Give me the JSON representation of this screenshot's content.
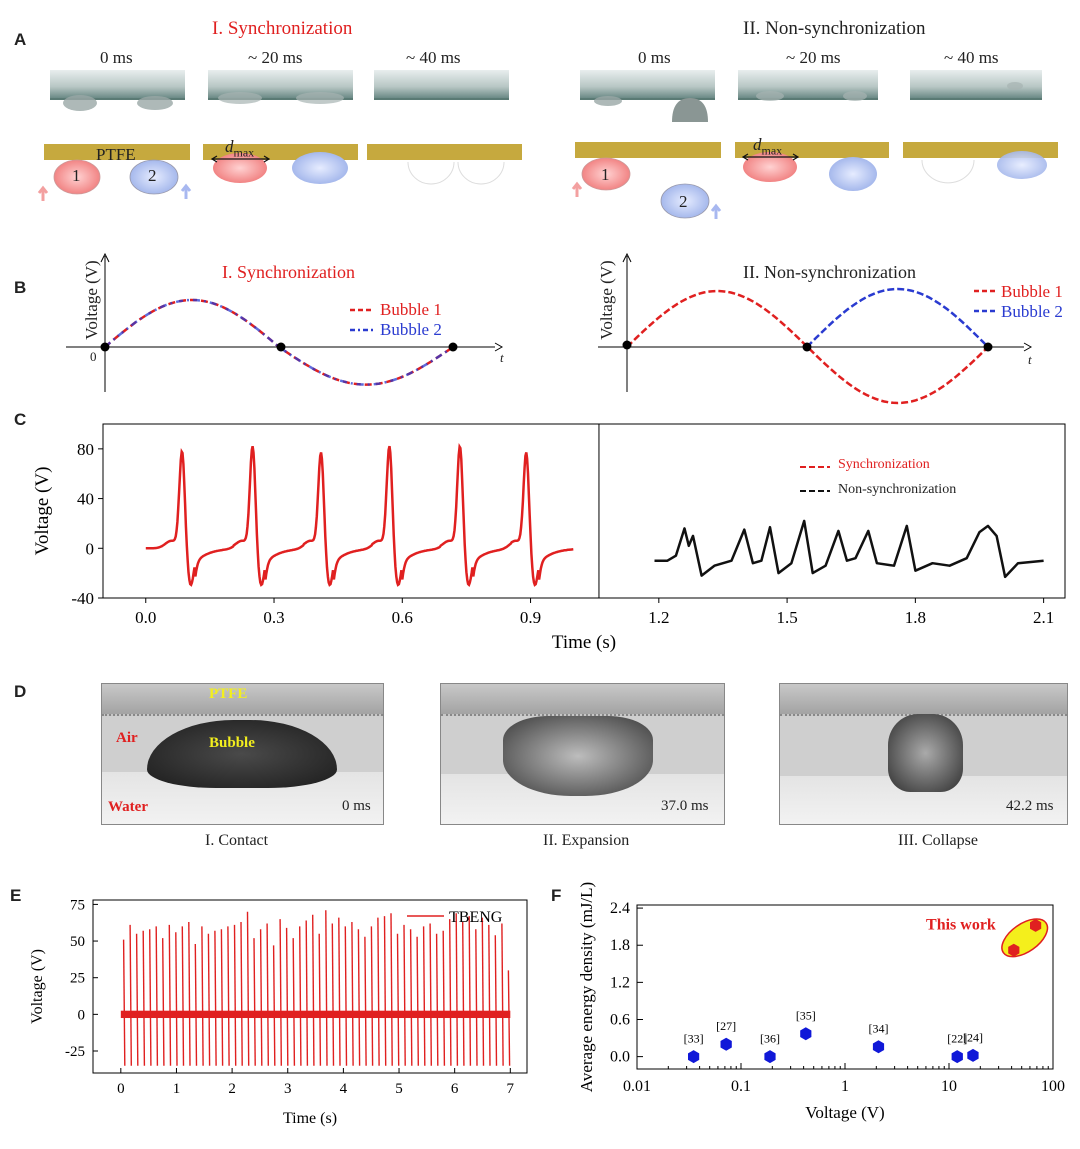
{
  "panelA": {
    "label": "A",
    "sync_title": "I. Synchronization",
    "nonsync_title": "II. Non-synchronization",
    "times": [
      "0 ms",
      "~ 20 ms",
      "~ 40 ms"
    ],
    "ptfe": "PTFE",
    "d_max_main": "d",
    "d_max_sub": "max",
    "bubble1": "1",
    "bubble2": "2"
  },
  "panelB": {
    "label": "B",
    "sync_title": "I. Synchronization",
    "nonsync_title": "II. Non-synchronization",
    "ylabel": "Voltage (V)",
    "xlabel": "t",
    "origin": "0",
    "legend1": "Bubble 1",
    "legend2": "Bubble 2",
    "colors": {
      "bubble1": "#e02020",
      "bubble2": "#2a3bd0"
    }
  },
  "panelD": {
    "label": "D",
    "ptfe": "PTFE",
    "air": "Air",
    "bubble": "Bubble",
    "water": "Water",
    "frames": [
      {
        "time": "0 ms",
        "caption": "I. Contact"
      },
      {
        "time": "37.0 ms",
        "caption": "II. Expansion"
      },
      {
        "time": "42.2 ms",
        "caption": "III. Collapse"
      }
    ]
  },
  "chart_data": [
    {
      "panel": "C",
      "type": "line",
      "xlabel": "Time (s)",
      "ylabel": "Voltage (V)",
      "xlim": [
        -0.1,
        2.15
      ],
      "ylim": [
        -40,
        100
      ],
      "xticks": [
        "0.0",
        "0.3",
        "0.6",
        "0.9",
        "1.2",
        "1.5",
        "1.8",
        "2.1"
      ],
      "yticks": [
        "-40",
        "0",
        "40",
        "80"
      ],
      "divider_x": 1.06,
      "series": [
        {
          "name": "Synchronization",
          "color": "#e02020",
          "peaks": [
            {
              "t": 0.085,
              "v": 78
            },
            {
              "t": 0.25,
              "v": 82
            },
            {
              "t": 0.41,
              "v": 77
            },
            {
              "t": 0.57,
              "v": 82
            },
            {
              "t": 0.735,
              "v": 82
            },
            {
              "t": 0.89,
              "v": 77
            }
          ],
          "troughs": -30,
          "t_start": 0.0,
          "t_end": 1.0
        },
        {
          "name": "Non-synchronization",
          "color": "#111111",
          "points": [
            [
              1.19,
              -10
            ],
            [
              1.22,
              -10
            ],
            [
              1.24,
              -6
            ],
            [
              1.26,
              16
            ],
            [
              1.27,
              2
            ],
            [
              1.28,
              10
            ],
            [
              1.3,
              -22
            ],
            [
              1.33,
              -14
            ],
            [
              1.37,
              -10
            ],
            [
              1.4,
              15
            ],
            [
              1.42,
              -12
            ],
            [
              1.44,
              -10
            ],
            [
              1.46,
              17
            ],
            [
              1.48,
              -20
            ],
            [
              1.51,
              -12
            ],
            [
              1.54,
              22
            ],
            [
              1.56,
              -20
            ],
            [
              1.59,
              -14
            ],
            [
              1.62,
              14
            ],
            [
              1.64,
              -10
            ],
            [
              1.66,
              -8
            ],
            [
              1.69,
              14
            ],
            [
              1.71,
              -12
            ],
            [
              1.75,
              -14
            ],
            [
              1.78,
              18
            ],
            [
              1.8,
              -18
            ],
            [
              1.84,
              -12
            ],
            [
              1.88,
              -14
            ],
            [
              1.92,
              -8
            ],
            [
              1.95,
              13
            ],
            [
              1.97,
              18
            ],
            [
              1.99,
              10
            ],
            [
              2.01,
              -23
            ],
            [
              2.04,
              -12
            ],
            [
              2.1,
              -10
            ]
          ]
        }
      ]
    },
    {
      "panel": "E",
      "type": "line",
      "xlabel": "Time (s)",
      "ylabel": "Voltage (V)",
      "xlim": [
        -0.5,
        7.3
      ],
      "ylim": [
        -40,
        78
      ],
      "xticks": [
        "0",
        "1",
        "2",
        "3",
        "4",
        "5",
        "6",
        "7"
      ],
      "yticks": [
        "-25",
        "0",
        "25",
        "50",
        "75"
      ],
      "legend": "TBENG",
      "color": "#e02020",
      "spike_count": 60,
      "spike_peaks": [
        51,
        61,
        55,
        57,
        58,
        60,
        52,
        61,
        56,
        60,
        63,
        48,
        60,
        55,
        57,
        58,
        60,
        61,
        63,
        70,
        52,
        58,
        62,
        47,
        65,
        59,
        52,
        60,
        64,
        68,
        55,
        71,
        62,
        66,
        60,
        63,
        58,
        53,
        60,
        66,
        67,
        69,
        55,
        61,
        58,
        53,
        60,
        62,
        55,
        57,
        65,
        69,
        63,
        67,
        58,
        66,
        61,
        54,
        62,
        30
      ],
      "trough": -35
    },
    {
      "panel": "F",
      "type": "scatter",
      "xlabel": "Voltage (V)",
      "ylabel": "Average energy density (mJ/L)",
      "xscale": "log",
      "xlim": [
        0.01,
        100
      ],
      "ylim": [
        -0.2,
        2.45
      ],
      "xticks": [
        "0.01",
        "0.1",
        "1",
        "10",
        "100"
      ],
      "yticks": [
        "0.0",
        "0.6",
        "1.2",
        "1.8",
        "2.4"
      ],
      "points": [
        {
          "ref": "[33]",
          "x": 0.035,
          "y": 0.0
        },
        {
          "ref": "[27]",
          "x": 0.072,
          "y": 0.2
        },
        {
          "ref": "[36]",
          "x": 0.19,
          "y": 0.0
        },
        {
          "ref": "[35]",
          "x": 0.42,
          "y": 0.37
        },
        {
          "ref": "[34]",
          "x": 2.1,
          "y": 0.16
        },
        {
          "ref": "[22]",
          "x": 12,
          "y": 0.0
        },
        {
          "ref": "[24]",
          "x": 17,
          "y": 0.02
        }
      ],
      "this_work": {
        "label": "This work",
        "points": [
          {
            "x": 42,
            "y": 1.72
          },
          {
            "x": 68,
            "y": 2.12
          }
        ]
      },
      "colors": {
        "refs": "#1018d8",
        "this_work": "#e02020",
        "highlight": "#f4ef1c"
      }
    }
  ]
}
